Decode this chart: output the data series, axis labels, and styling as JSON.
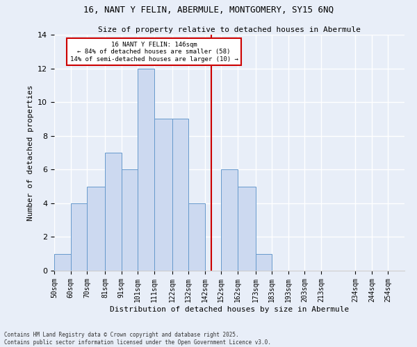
{
  "title": "16, NANT Y FELIN, ABERMULE, MONTGOMERY, SY15 6NQ",
  "subtitle": "Size of property relative to detached houses in Abermule",
  "xlabel": "Distribution of detached houses by size in Abermule",
  "ylabel": "Number of detached properties",
  "bin_edges": [
    50,
    60,
    70,
    81,
    91,
    101,
    111,
    122,
    132,
    142,
    152,
    162,
    173,
    183,
    193,
    203,
    213,
    234,
    244,
    254,
    264
  ],
  "bar_heights": [
    1,
    4,
    5,
    7,
    6,
    12,
    9,
    9,
    4,
    0,
    6,
    5,
    1,
    0,
    0,
    0,
    0,
    0,
    0,
    0
  ],
  "tick_labels": [
    "50sqm",
    "60sqm",
    "70sqm",
    "81sqm",
    "91sqm",
    "101sqm",
    "111sqm",
    "122sqm",
    "132sqm",
    "142sqm",
    "152sqm",
    "162sqm",
    "173sqm",
    "183sqm",
    "193sqm",
    "203sqm",
    "213sqm",
    "234sqm",
    "244sqm",
    "254sqm"
  ],
  "bar_facecolor": "#ccd9f0",
  "bar_edgecolor": "#6699cc",
  "vline_x": 146,
  "vline_color": "#cc0000",
  "annotation_text": "16 NANT Y FELIN: 146sqm\n← 84% of detached houses are smaller (58)\n14% of semi-detached houses are larger (10) →",
  "annotation_box_edgecolor": "#cc0000",
  "annotation_box_facecolor": "#ffffff",
  "ylim": [
    0,
    14
  ],
  "yticks": [
    0,
    2,
    4,
    6,
    8,
    10,
    12,
    14
  ],
  "background_color": "#e8eef8",
  "grid_color": "#ffffff",
  "footer": "Contains HM Land Registry data © Crown copyright and database right 2025.\nContains public sector information licensed under the Open Government Licence v3.0."
}
